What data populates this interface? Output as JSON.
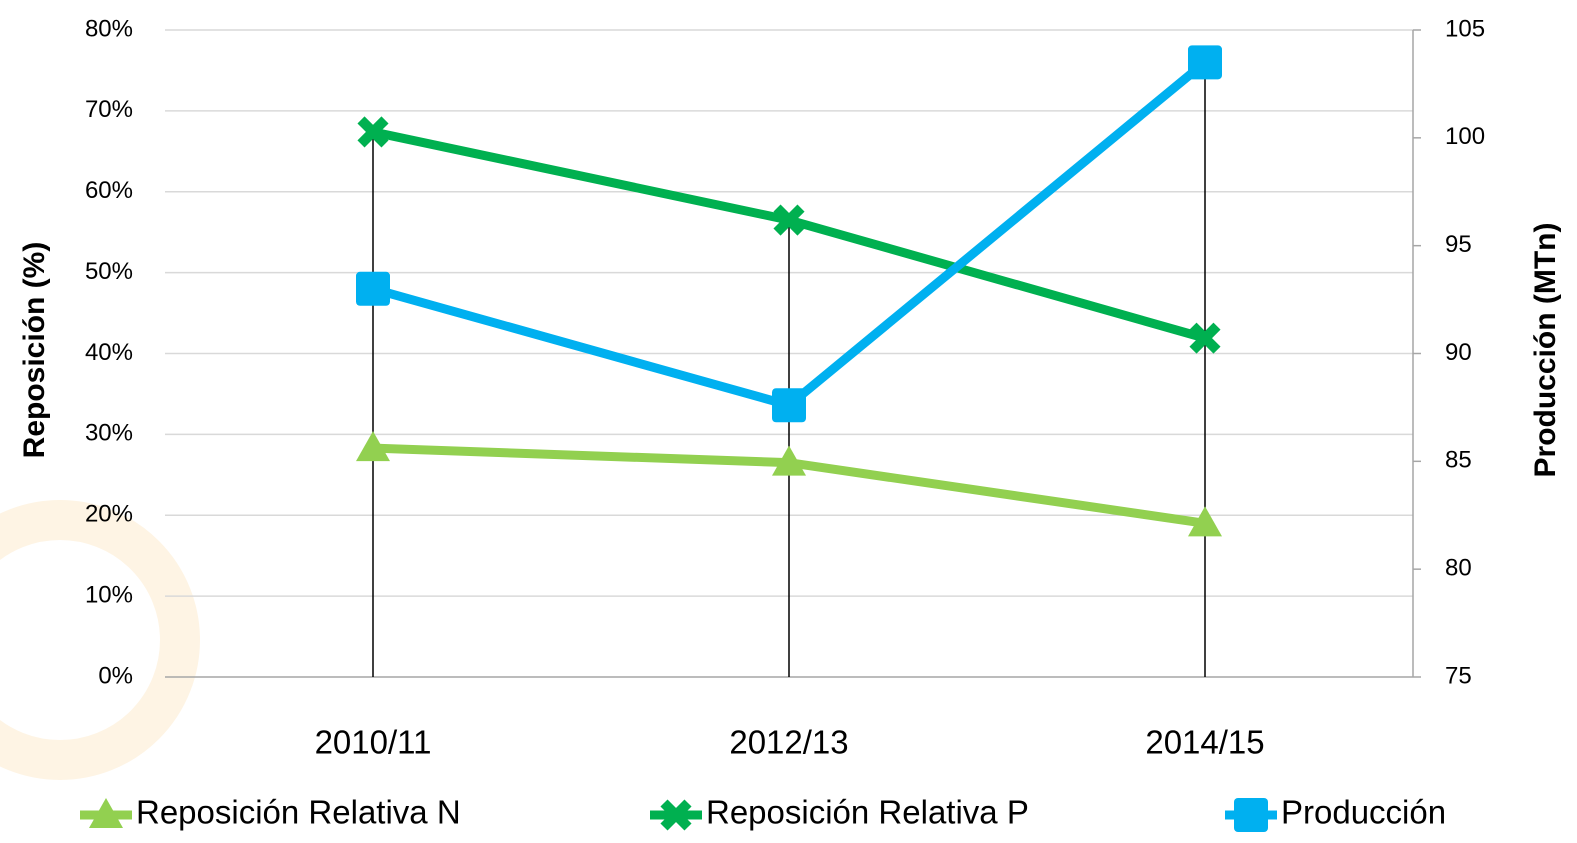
{
  "chart_data": {
    "type": "line",
    "y_label": "Reposición (%)",
    "y2_label": "Producción (MTn)",
    "categories": [
      "2010/11",
      "2012/13",
      "2014/15"
    ],
    "series": [
      {
        "name": "Reposición Relativa N",
        "color": "#92d050",
        "marker": "triangle",
        "values": [
          28.3,
          26.5,
          19.0
        ]
      },
      {
        "name": "Reposición Relativa P",
        "color": "#00b050",
        "marker": "x",
        "values": [
          67.4,
          56.5,
          41.9
        ]
      },
      {
        "name": "Producción",
        "color": "#00b0f0",
        "marker": "square",
        "axis": "y2",
        "values": [
          93.0,
          87.6,
          103.5
        ]
      }
    ],
    "ylim": [
      0,
      80
    ],
    "yticks": [
      {
        "value": 0,
        "label": "0%"
      },
      {
        "value": 10,
        "label": "10%"
      },
      {
        "value": 20,
        "label": "20%"
      },
      {
        "value": 30,
        "label": "30%"
      },
      {
        "value": 40,
        "label": "40%"
      },
      {
        "value": 50,
        "label": "50%"
      },
      {
        "value": 60,
        "label": "60%"
      },
      {
        "value": 70,
        "label": "70%"
      },
      {
        "value": 80,
        "label": "80%"
      }
    ],
    "y2lim": [
      75,
      105
    ],
    "y2ticks": [
      75,
      80,
      85,
      90,
      95,
      100,
      105
    ],
    "grid": true,
    "legend": "bottom"
  }
}
